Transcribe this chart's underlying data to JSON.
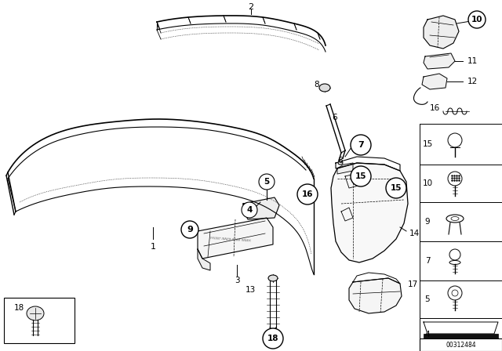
{
  "background_color": "#ffffff",
  "image_number": "00312484",
  "fig_width": 6.4,
  "fig_height": 4.48,
  "dpi": 100,
  "line_color": "#000000",
  "text_color": "#000000"
}
